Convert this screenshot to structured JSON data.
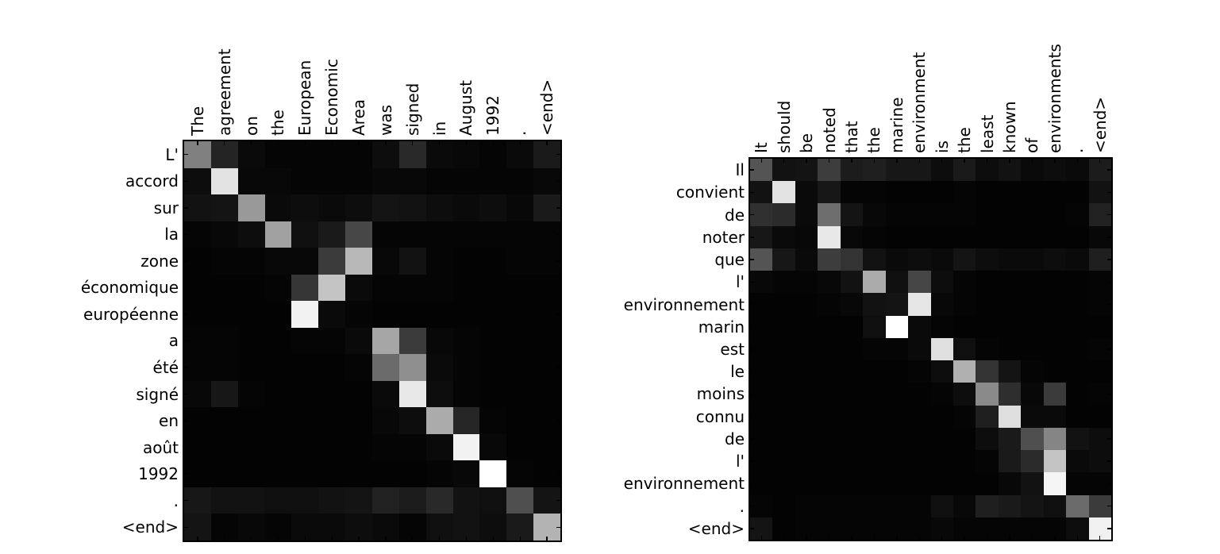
{
  "figure": {
    "background_color": "#ffffff",
    "text_color": "#000000",
    "colormap": "gray",
    "colormap_low": "#000000",
    "colormap_high": "#ffffff"
  },
  "chart_data": [
    {
      "type": "heatmap",
      "title": "",
      "xlabel": "",
      "ylabel": "",
      "x_axis_position": "top",
      "grid": false,
      "legend": "none",
      "x_labels": [
        "The",
        "agreement",
        "on",
        "the",
        "European",
        "Economic",
        "Area",
        "was",
        "signed",
        "in",
        "August",
        "1992",
        ".",
        "<end>"
      ],
      "y_labels": [
        "L'",
        "accord",
        "sur",
        "la",
        "zone",
        "économique",
        "européenne",
        "a",
        "été",
        "signé",
        "en",
        "août",
        "1992",
        ".",
        "<end>"
      ],
      "value_range": [
        0,
        1
      ],
      "matrix": [
        [
          0.5,
          0.14,
          0.04,
          0.02,
          0.02,
          0.02,
          0.02,
          0.05,
          0.16,
          0.04,
          0.03,
          0.02,
          0.04,
          0.1
        ],
        [
          0.05,
          0.89,
          0.03,
          0.03,
          0.02,
          0.02,
          0.02,
          0.03,
          0.03,
          0.02,
          0.02,
          0.02,
          0.02,
          0.03
        ],
        [
          0.07,
          0.08,
          0.6,
          0.04,
          0.05,
          0.04,
          0.05,
          0.08,
          0.07,
          0.05,
          0.04,
          0.05,
          0.03,
          0.1
        ],
        [
          0.02,
          0.03,
          0.05,
          0.63,
          0.06,
          0.1,
          0.28,
          0.02,
          0.02,
          0.02,
          0.02,
          0.02,
          0.02,
          0.02
        ],
        [
          0.01,
          0.02,
          0.02,
          0.03,
          0.03,
          0.23,
          0.72,
          0.03,
          0.07,
          0.02,
          0.01,
          0.01,
          0.02,
          0.02
        ],
        [
          0.01,
          0.01,
          0.01,
          0.02,
          0.21,
          0.77,
          0.04,
          0.02,
          0.02,
          0.02,
          0.01,
          0.01,
          0.01,
          0.01
        ],
        [
          0.01,
          0.01,
          0.01,
          0.01,
          0.95,
          0.04,
          0.02,
          0.01,
          0.01,
          0.01,
          0.01,
          0.01,
          0.01,
          0.01
        ],
        [
          0.02,
          0.02,
          0.01,
          0.01,
          0.02,
          0.02,
          0.04,
          0.65,
          0.23,
          0.03,
          0.02,
          0.01,
          0.01,
          0.01
        ],
        [
          0.02,
          0.02,
          0.01,
          0.01,
          0.01,
          0.01,
          0.02,
          0.42,
          0.56,
          0.04,
          0.02,
          0.01,
          0.01,
          0.01
        ],
        [
          0.03,
          0.09,
          0.02,
          0.01,
          0.01,
          0.01,
          0.01,
          0.04,
          0.91,
          0.05,
          0.02,
          0.01,
          0.01,
          0.01
        ],
        [
          0.01,
          0.01,
          0.01,
          0.01,
          0.01,
          0.01,
          0.01,
          0.03,
          0.05,
          0.67,
          0.15,
          0.02,
          0.01,
          0.01
        ],
        [
          0.01,
          0.01,
          0.01,
          0.01,
          0.01,
          0.01,
          0.01,
          0.02,
          0.02,
          0.04,
          0.95,
          0.03,
          0.01,
          0.01
        ],
        [
          0.01,
          0.01,
          0.01,
          0.01,
          0.01,
          0.01,
          0.01,
          0.01,
          0.01,
          0.02,
          0.03,
          1.0,
          0.02,
          0.01
        ],
        [
          0.09,
          0.07,
          0.07,
          0.06,
          0.06,
          0.07,
          0.08,
          0.13,
          0.11,
          0.16,
          0.07,
          0.06,
          0.31,
          0.08
        ],
        [
          0.08,
          0.02,
          0.03,
          0.02,
          0.04,
          0.04,
          0.05,
          0.04,
          0.02,
          0.06,
          0.07,
          0.05,
          0.1,
          0.7
        ]
      ]
    },
    {
      "type": "heatmap",
      "title": "",
      "xlabel": "",
      "ylabel": "",
      "x_axis_position": "top",
      "grid": false,
      "legend": "none",
      "x_labels": [
        "It",
        "should",
        "be",
        "noted",
        "that",
        "the",
        "marine",
        "environment",
        "is",
        "the",
        "least",
        "known",
        "of",
        "environments",
        ".",
        "<end>"
      ],
      "y_labels": [
        "Il",
        "convient",
        "de",
        "noter",
        "que",
        "l'",
        "environnement",
        "marin",
        "est",
        "le",
        "moins",
        "connu",
        "de",
        "l'",
        "environnement",
        ".",
        "<end>"
      ],
      "value_range": [
        0,
        1
      ],
      "matrix": [
        [
          0.33,
          0.07,
          0.08,
          0.24,
          0.11,
          0.12,
          0.09,
          0.09,
          0.05,
          0.1,
          0.05,
          0.07,
          0.04,
          0.05,
          0.04,
          0.11
        ],
        [
          0.07,
          0.89,
          0.04,
          0.09,
          0.02,
          0.02,
          0.01,
          0.01,
          0.01,
          0.02,
          0.01,
          0.01,
          0.01,
          0.01,
          0.01,
          0.07
        ],
        [
          0.19,
          0.17,
          0.04,
          0.43,
          0.08,
          0.03,
          0.02,
          0.02,
          0.02,
          0.02,
          0.01,
          0.01,
          0.01,
          0.01,
          0.02,
          0.13
        ],
        [
          0.09,
          0.04,
          0.03,
          0.91,
          0.03,
          0.02,
          0.01,
          0.01,
          0.01,
          0.01,
          0.01,
          0.01,
          0.01,
          0.01,
          0.01,
          0.03
        ],
        [
          0.33,
          0.09,
          0.04,
          0.24,
          0.2,
          0.07,
          0.04,
          0.05,
          0.04,
          0.08,
          0.05,
          0.04,
          0.04,
          0.05,
          0.04,
          0.12
        ],
        [
          0.03,
          0.02,
          0.02,
          0.03,
          0.07,
          0.67,
          0.06,
          0.27,
          0.05,
          0.02,
          0.01,
          0.01,
          0.01,
          0.01,
          0.01,
          0.02
        ],
        [
          0.01,
          0.01,
          0.01,
          0.02,
          0.03,
          0.07,
          0.08,
          0.9,
          0.03,
          0.02,
          0.01,
          0.01,
          0.01,
          0.01,
          0.01,
          0.02
        ],
        [
          0.01,
          0.01,
          0.01,
          0.01,
          0.01,
          0.06,
          1.0,
          0.04,
          0.02,
          0.01,
          0.01,
          0.01,
          0.01,
          0.01,
          0.01,
          0.01
        ],
        [
          0.01,
          0.01,
          0.01,
          0.01,
          0.01,
          0.02,
          0.02,
          0.04,
          0.88,
          0.06,
          0.02,
          0.01,
          0.01,
          0.01,
          0.01,
          0.02
        ],
        [
          0.01,
          0.01,
          0.01,
          0.01,
          0.01,
          0.01,
          0.01,
          0.02,
          0.05,
          0.69,
          0.2,
          0.08,
          0.02,
          0.01,
          0.01,
          0.01
        ],
        [
          0.01,
          0.01,
          0.01,
          0.01,
          0.01,
          0.01,
          0.01,
          0.01,
          0.02,
          0.05,
          0.54,
          0.18,
          0.03,
          0.23,
          0.01,
          0.02
        ],
        [
          0.01,
          0.01,
          0.01,
          0.01,
          0.01,
          0.01,
          0.01,
          0.01,
          0.01,
          0.02,
          0.12,
          0.87,
          0.04,
          0.04,
          0.01,
          0.01
        ],
        [
          0.01,
          0.01,
          0.01,
          0.01,
          0.01,
          0.01,
          0.01,
          0.01,
          0.01,
          0.01,
          0.05,
          0.1,
          0.31,
          0.52,
          0.07,
          0.05
        ],
        [
          0.01,
          0.01,
          0.01,
          0.01,
          0.01,
          0.01,
          0.01,
          0.01,
          0.01,
          0.01,
          0.02,
          0.1,
          0.17,
          0.77,
          0.04,
          0.05
        ],
        [
          0.01,
          0.01,
          0.01,
          0.01,
          0.01,
          0.01,
          0.01,
          0.01,
          0.01,
          0.01,
          0.01,
          0.03,
          0.07,
          0.96,
          0.02,
          0.02
        ],
        [
          0.02,
          0.01,
          0.02,
          0.02,
          0.02,
          0.02,
          0.02,
          0.02,
          0.06,
          0.03,
          0.12,
          0.1,
          0.08,
          0.06,
          0.42,
          0.23
        ],
        [
          0.08,
          0.01,
          0.02,
          0.02,
          0.02,
          0.02,
          0.02,
          0.02,
          0.03,
          0.02,
          0.02,
          0.02,
          0.02,
          0.02,
          0.05,
          0.94
        ]
      ]
    }
  ]
}
